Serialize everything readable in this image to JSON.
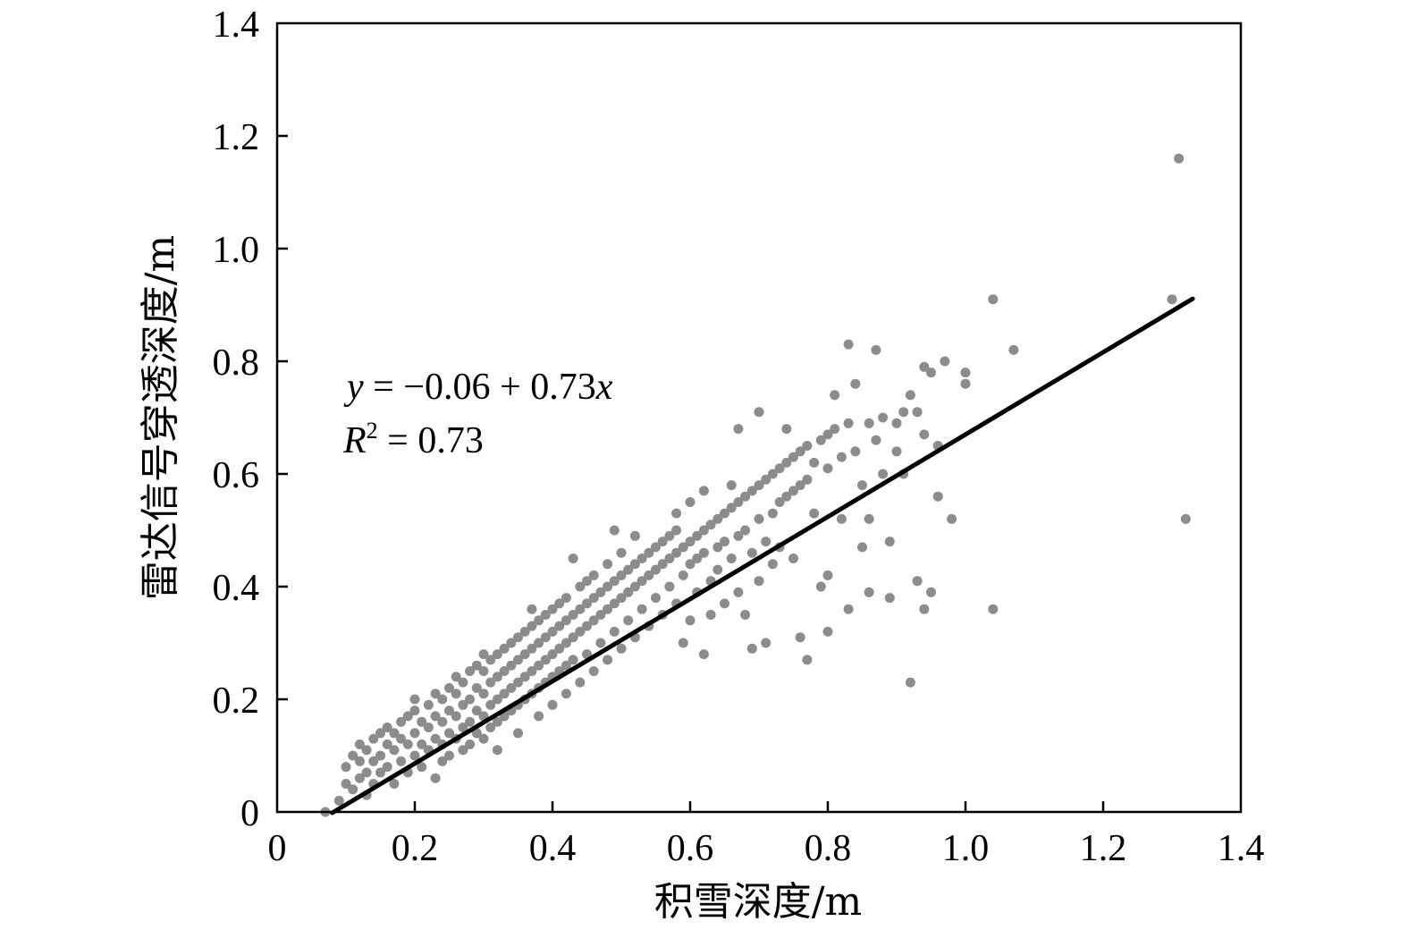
{
  "chart_data": {
    "type": "scatter",
    "xlabel": "积雪深度/m",
    "ylabel": "雷达信号穿透深度/m",
    "xlim": [
      0,
      1.4
    ],
    "ylim": [
      0,
      1.4
    ],
    "x_ticks": [
      0,
      0.2,
      0.4,
      0.6,
      0.8,
      1.0,
      1.2,
      1.4
    ],
    "y_ticks": [
      0,
      0.2,
      0.4,
      0.6,
      0.8,
      1.0,
      1.2,
      1.4
    ],
    "x_tick_labels": [
      "0",
      "0.2",
      "0.4",
      "0.6",
      "0.8",
      "1.0",
      "1.2",
      "1.4"
    ],
    "y_tick_labels": [
      "0",
      "0.2",
      "0.4",
      "0.6",
      "0.8",
      "1.0",
      "1.2",
      "1.4"
    ],
    "grid": false,
    "point_color": "#8c8c8c",
    "fit_line": {
      "intercept": -0.06,
      "slope": 0.73,
      "x_range": [
        0.08,
        1.33
      ],
      "color": "#000000"
    },
    "annotation": {
      "equation_y": "y",
      "equation_rhs": " = −0.06 + 0.73",
      "equation_x": "x",
      "r2_label": "R",
      "r2_exp": "2",
      "r2_rhs": " = 0.73"
    },
    "points": [
      [
        0.07,
        0.0
      ],
      [
        0.09,
        0.02
      ],
      [
        0.1,
        0.05
      ],
      [
        0.1,
        0.08
      ],
      [
        0.11,
        0.04
      ],
      [
        0.11,
        0.1
      ],
      [
        0.12,
        0.06
      ],
      [
        0.12,
        0.09
      ],
      [
        0.12,
        0.12
      ],
      [
        0.13,
        0.03
      ],
      [
        0.13,
        0.07
      ],
      [
        0.13,
        0.11
      ],
      [
        0.14,
        0.05
      ],
      [
        0.14,
        0.09
      ],
      [
        0.14,
        0.13
      ],
      [
        0.15,
        0.1
      ],
      [
        0.15,
        0.14
      ],
      [
        0.15,
        0.07
      ],
      [
        0.16,
        0.12
      ],
      [
        0.16,
        0.15
      ],
      [
        0.16,
        0.08
      ],
      [
        0.17,
        0.11
      ],
      [
        0.17,
        0.14
      ],
      [
        0.17,
        0.05
      ],
      [
        0.18,
        0.13
      ],
      [
        0.18,
        0.16
      ],
      [
        0.18,
        0.09
      ],
      [
        0.19,
        0.12
      ],
      [
        0.19,
        0.17
      ],
      [
        0.19,
        0.07
      ],
      [
        0.2,
        0.14
      ],
      [
        0.2,
        0.18
      ],
      [
        0.2,
        0.1
      ],
      [
        0.2,
        0.2
      ],
      [
        0.21,
        0.12
      ],
      [
        0.21,
        0.16
      ],
      [
        0.21,
        0.08
      ],
      [
        0.22,
        0.15
      ],
      [
        0.22,
        0.19
      ],
      [
        0.22,
        0.11
      ],
      [
        0.23,
        0.13
      ],
      [
        0.23,
        0.17
      ],
      [
        0.23,
        0.21
      ],
      [
        0.23,
        0.06
      ],
      [
        0.24,
        0.16
      ],
      [
        0.24,
        0.2
      ],
      [
        0.24,
        0.12
      ],
      [
        0.24,
        0.09
      ],
      [
        0.25,
        0.18
      ],
      [
        0.25,
        0.22
      ],
      [
        0.25,
        0.14
      ],
      [
        0.25,
        0.1
      ],
      [
        0.26,
        0.17
      ],
      [
        0.26,
        0.21
      ],
      [
        0.26,
        0.13
      ],
      [
        0.26,
        0.24
      ],
      [
        0.27,
        0.19
      ],
      [
        0.27,
        0.15
      ],
      [
        0.27,
        0.23
      ],
      [
        0.27,
        0.11
      ],
      [
        0.28,
        0.2
      ],
      [
        0.28,
        0.16
      ],
      [
        0.28,
        0.25
      ],
      [
        0.28,
        0.12
      ],
      [
        0.29,
        0.22
      ],
      [
        0.29,
        0.18
      ],
      [
        0.29,
        0.26
      ],
      [
        0.29,
        0.14
      ],
      [
        0.3,
        0.21
      ],
      [
        0.3,
        0.17
      ],
      [
        0.3,
        0.25
      ],
      [
        0.3,
        0.28
      ],
      [
        0.3,
        0.13
      ],
      [
        0.31,
        0.23
      ],
      [
        0.31,
        0.19
      ],
      [
        0.31,
        0.27
      ],
      [
        0.31,
        0.15
      ],
      [
        0.32,
        0.24
      ],
      [
        0.32,
        0.2
      ],
      [
        0.32,
        0.28
      ],
      [
        0.32,
        0.16
      ],
      [
        0.32,
        0.11
      ],
      [
        0.33,
        0.25
      ],
      [
        0.33,
        0.21
      ],
      [
        0.33,
        0.29
      ],
      [
        0.33,
        0.17
      ],
      [
        0.34,
        0.26
      ],
      [
        0.34,
        0.22
      ],
      [
        0.34,
        0.3
      ],
      [
        0.34,
        0.18
      ],
      [
        0.35,
        0.27
      ],
      [
        0.35,
        0.23
      ],
      [
        0.35,
        0.31
      ],
      [
        0.35,
        0.19
      ],
      [
        0.35,
        0.14
      ],
      [
        0.36,
        0.28
      ],
      [
        0.36,
        0.24
      ],
      [
        0.36,
        0.32
      ],
      [
        0.36,
        0.2
      ],
      [
        0.37,
        0.29
      ],
      [
        0.37,
        0.25
      ],
      [
        0.37,
        0.33
      ],
      [
        0.37,
        0.21
      ],
      [
        0.37,
        0.36
      ],
      [
        0.38,
        0.3
      ],
      [
        0.38,
        0.26
      ],
      [
        0.38,
        0.34
      ],
      [
        0.38,
        0.22
      ],
      [
        0.38,
        0.17
      ],
      [
        0.39,
        0.31
      ],
      [
        0.39,
        0.27
      ],
      [
        0.39,
        0.35
      ],
      [
        0.39,
        0.23
      ],
      [
        0.4,
        0.32
      ],
      [
        0.4,
        0.28
      ],
      [
        0.4,
        0.36
      ],
      [
        0.4,
        0.24
      ],
      [
        0.4,
        0.19
      ],
      [
        0.41,
        0.33
      ],
      [
        0.41,
        0.29
      ],
      [
        0.41,
        0.37
      ],
      [
        0.41,
        0.25
      ],
      [
        0.42,
        0.34
      ],
      [
        0.42,
        0.3
      ],
      [
        0.42,
        0.38
      ],
      [
        0.42,
        0.26
      ],
      [
        0.42,
        0.21
      ],
      [
        0.43,
        0.35
      ],
      [
        0.43,
        0.31
      ],
      [
        0.43,
        0.45
      ],
      [
        0.43,
        0.27
      ],
      [
        0.44,
        0.36
      ],
      [
        0.44,
        0.32
      ],
      [
        0.44,
        0.4
      ],
      [
        0.44,
        0.23
      ],
      [
        0.45,
        0.37
      ],
      [
        0.45,
        0.33
      ],
      [
        0.45,
        0.41
      ],
      [
        0.45,
        0.28
      ],
      [
        0.46,
        0.38
      ],
      [
        0.46,
        0.34
      ],
      [
        0.46,
        0.42
      ],
      [
        0.46,
        0.25
      ],
      [
        0.47,
        0.39
      ],
      [
        0.47,
        0.35
      ],
      [
        0.47,
        0.3
      ],
      [
        0.48,
        0.4
      ],
      [
        0.48,
        0.36
      ],
      [
        0.48,
        0.44
      ],
      [
        0.48,
        0.27
      ],
      [
        0.49,
        0.41
      ],
      [
        0.49,
        0.37
      ],
      [
        0.49,
        0.5
      ],
      [
        0.49,
        0.32
      ],
      [
        0.5,
        0.42
      ],
      [
        0.5,
        0.38
      ],
      [
        0.5,
        0.46
      ],
      [
        0.5,
        0.29
      ],
      [
        0.51,
        0.43
      ],
      [
        0.51,
        0.39
      ],
      [
        0.51,
        0.34
      ],
      [
        0.52,
        0.44
      ],
      [
        0.52,
        0.4
      ],
      [
        0.52,
        0.49
      ],
      [
        0.52,
        0.31
      ],
      [
        0.53,
        0.45
      ],
      [
        0.53,
        0.41
      ],
      [
        0.53,
        0.36
      ],
      [
        0.54,
        0.46
      ],
      [
        0.54,
        0.42
      ],
      [
        0.54,
        0.33
      ],
      [
        0.55,
        0.47
      ],
      [
        0.55,
        0.43
      ],
      [
        0.55,
        0.38
      ],
      [
        0.56,
        0.48
      ],
      [
        0.56,
        0.44
      ],
      [
        0.56,
        0.35
      ],
      [
        0.57,
        0.49
      ],
      [
        0.57,
        0.45
      ],
      [
        0.57,
        0.4
      ],
      [
        0.58,
        0.5
      ],
      [
        0.58,
        0.46
      ],
      [
        0.58,
        0.37
      ],
      [
        0.58,
        0.53
      ],
      [
        0.59,
        0.47
      ],
      [
        0.59,
        0.42
      ],
      [
        0.59,
        0.3
      ],
      [
        0.6,
        0.48
      ],
      [
        0.6,
        0.44
      ],
      [
        0.6,
        0.55
      ],
      [
        0.6,
        0.34
      ],
      [
        0.61,
        0.49
      ],
      [
        0.61,
        0.45
      ],
      [
        0.61,
        0.39
      ],
      [
        0.62,
        0.5
      ],
      [
        0.62,
        0.46
      ],
      [
        0.62,
        0.57
      ],
      [
        0.62,
        0.28
      ],
      [
        0.63,
        0.51
      ],
      [
        0.63,
        0.41
      ],
      [
        0.63,
        0.35
      ],
      [
        0.64,
        0.52
      ],
      [
        0.64,
        0.47
      ],
      [
        0.64,
        0.43
      ],
      [
        0.65,
        0.53
      ],
      [
        0.65,
        0.48
      ],
      [
        0.65,
        0.37
      ],
      [
        0.66,
        0.54
      ],
      [
        0.66,
        0.45
      ],
      [
        0.66,
        0.58
      ],
      [
        0.67,
        0.55
      ],
      [
        0.67,
        0.49
      ],
      [
        0.67,
        0.39
      ],
      [
        0.67,
        0.68
      ],
      [
        0.68,
        0.56
      ],
      [
        0.68,
        0.5
      ],
      [
        0.68,
        0.35
      ],
      [
        0.69,
        0.57
      ],
      [
        0.69,
        0.46
      ],
      [
        0.69,
        0.29
      ],
      [
        0.7,
        0.58
      ],
      [
        0.7,
        0.52
      ],
      [
        0.7,
        0.71
      ],
      [
        0.7,
        0.41
      ],
      [
        0.71,
        0.59
      ],
      [
        0.71,
        0.48
      ],
      [
        0.71,
        0.3
      ],
      [
        0.72,
        0.6
      ],
      [
        0.72,
        0.53
      ],
      [
        0.72,
        0.44
      ],
      [
        0.73,
        0.61
      ],
      [
        0.73,
        0.55
      ],
      [
        0.73,
        0.47
      ],
      [
        0.74,
        0.62
      ],
      [
        0.74,
        0.56
      ],
      [
        0.74,
        0.68
      ],
      [
        0.75,
        0.63
      ],
      [
        0.75,
        0.57
      ],
      [
        0.75,
        0.45
      ],
      [
        0.76,
        0.64
      ],
      [
        0.76,
        0.58
      ],
      [
        0.76,
        0.31
      ],
      [
        0.77,
        0.65
      ],
      [
        0.77,
        0.59
      ],
      [
        0.77,
        0.27
      ],
      [
        0.78,
        0.62
      ],
      [
        0.78,
        0.53
      ],
      [
        0.79,
        0.66
      ],
      [
        0.79,
        0.4
      ],
      [
        0.8,
        0.67
      ],
      [
        0.8,
        0.61
      ],
      [
        0.8,
        0.42
      ],
      [
        0.8,
        0.32
      ],
      [
        0.81,
        0.68
      ],
      [
        0.81,
        0.74
      ],
      [
        0.82,
        0.63
      ],
      [
        0.82,
        0.52
      ],
      [
        0.83,
        0.83
      ],
      [
        0.83,
        0.69
      ],
      [
        0.83,
        0.36
      ],
      [
        0.84,
        0.76
      ],
      [
        0.84,
        0.64
      ],
      [
        0.85,
        0.58
      ],
      [
        0.85,
        0.47
      ],
      [
        0.86,
        0.69
      ],
      [
        0.86,
        0.52
      ],
      [
        0.86,
        0.39
      ],
      [
        0.87,
        0.82
      ],
      [
        0.87,
        0.66
      ],
      [
        0.88,
        0.7
      ],
      [
        0.88,
        0.6
      ],
      [
        0.89,
        0.48
      ],
      [
        0.89,
        0.38
      ],
      [
        0.9,
        0.69
      ],
      [
        0.9,
        0.64
      ],
      [
        0.91,
        0.71
      ],
      [
        0.91,
        0.6
      ],
      [
        0.92,
        0.74
      ],
      [
        0.92,
        0.23
      ],
      [
        0.93,
        0.71
      ],
      [
        0.93,
        0.41
      ],
      [
        0.94,
        0.79
      ],
      [
        0.94,
        0.67
      ],
      [
        0.94,
        0.36
      ],
      [
        0.95,
        0.78
      ],
      [
        0.95,
        0.39
      ],
      [
        0.96,
        0.65
      ],
      [
        0.96,
        0.56
      ],
      [
        0.97,
        0.8
      ],
      [
        0.98,
        0.52
      ],
      [
        1.0,
        0.78
      ],
      [
        1.0,
        0.76
      ],
      [
        1.04,
        0.91
      ],
      [
        1.04,
        0.36
      ],
      [
        1.07,
        0.82
      ],
      [
        1.3,
        0.91
      ],
      [
        1.31,
        1.16
      ],
      [
        1.32,
        0.52
      ]
    ]
  }
}
